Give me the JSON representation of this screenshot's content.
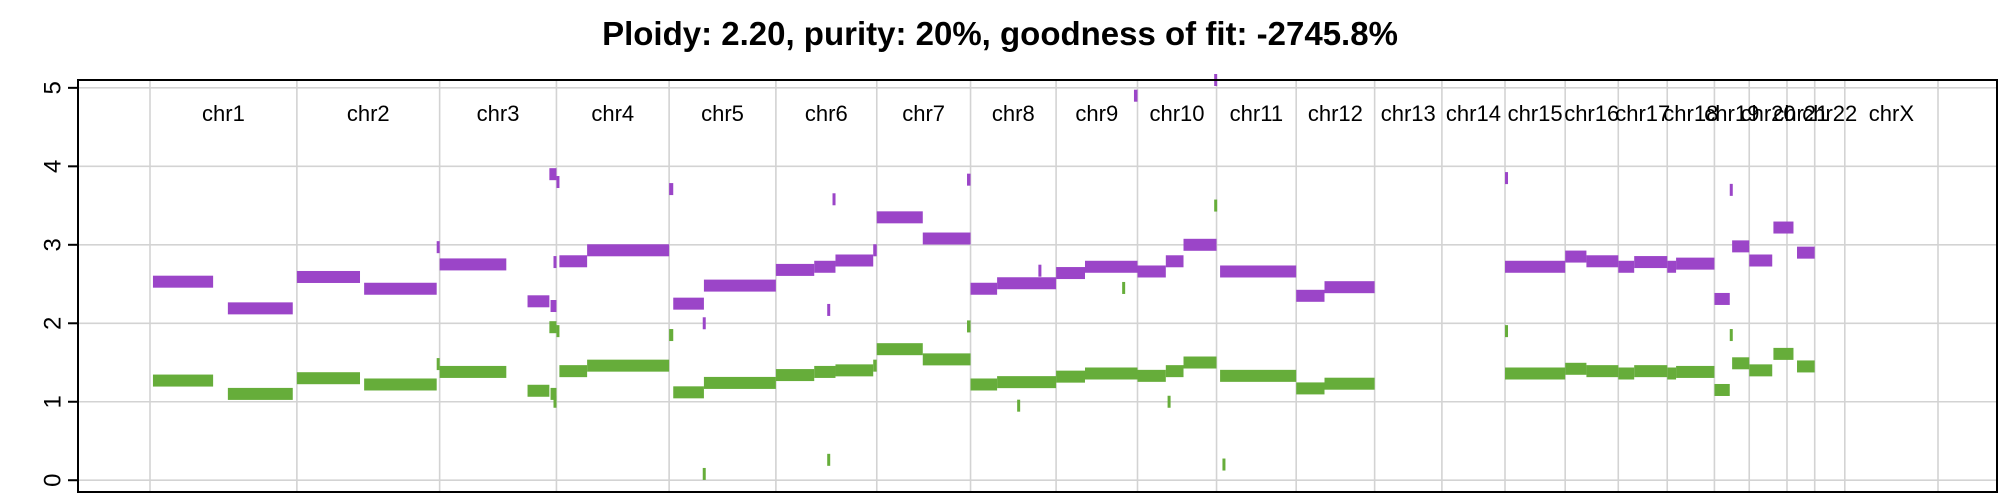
{
  "chart_data": {
    "type": "segment",
    "title": "Ploidy: 2.20, purity: 20%, goodness of fit: -2745.8%",
    "xlabel": "",
    "ylabel": "",
    "ylim": [
      -0.15,
      5.1
    ],
    "yticks": [
      "0",
      "1",
      "2",
      "3",
      "4",
      "5"
    ],
    "grid": true,
    "colors": {
      "major": "#9b45c8",
      "minor": "#66ad3a",
      "grid": "#d3d3d3"
    },
    "genome_length": 3031,
    "chromosomes": [
      {
        "name": "chr1",
        "start": 0,
        "end": 249
      },
      {
        "name": "chr2",
        "start": 249,
        "end": 491
      },
      {
        "name": "chr3",
        "start": 491,
        "end": 689
      },
      {
        "name": "chr4",
        "start": 689,
        "end": 880
      },
      {
        "name": "chr5",
        "start": 880,
        "end": 1061
      },
      {
        "name": "chr6",
        "start": 1061,
        "end": 1232
      },
      {
        "name": "chr7",
        "start": 1232,
        "end": 1391
      },
      {
        "name": "chr8",
        "start": 1391,
        "end": 1536
      },
      {
        "name": "chr9",
        "start": 1536,
        "end": 1674
      },
      {
        "name": "chr10",
        "start": 1674,
        "end": 1808
      },
      {
        "name": "chr11",
        "start": 1808,
        "end": 1943
      },
      {
        "name": "chr12",
        "start": 1943,
        "end": 2076
      },
      {
        "name": "chr13",
        "start": 2076,
        "end": 2190
      },
      {
        "name": "chr14",
        "start": 2190,
        "end": 2297
      },
      {
        "name": "chr15",
        "start": 2297,
        "end": 2399
      },
      {
        "name": "chr16",
        "start": 2399,
        "end": 2489
      },
      {
        "name": "chr17",
        "start": 2489,
        "end": 2572
      },
      {
        "name": "chr18",
        "start": 2572,
        "end": 2652
      },
      {
        "name": "chr19",
        "start": 2652,
        "end": 2711
      },
      {
        "name": "chr20",
        "start": 2711,
        "end": 2775
      },
      {
        "name": "chr21",
        "start": 2775,
        "end": 2822
      },
      {
        "name": "chr22",
        "start": 2822,
        "end": 2873
      },
      {
        "name": "chrX",
        "start": 2873,
        "end": 3031
      }
    ],
    "series": [
      {
        "name": "major",
        "segments": [
          [
            5,
            107,
            2.53
          ],
          [
            132,
            242,
            2.19
          ],
          [
            249,
            356,
            2.59
          ],
          [
            363,
            486,
            2.44
          ],
          [
            486,
            491,
            2.97
          ],
          [
            491,
            604,
            2.75
          ],
          [
            640,
            677,
            2.28
          ],
          [
            677,
            689,
            3.9
          ],
          [
            679,
            689,
            2.22
          ],
          [
            684,
            689,
            2.78
          ],
          [
            689,
            694,
            3.8
          ],
          [
            694,
            741,
            2.79
          ],
          [
            741,
            880,
            2.93
          ],
          [
            880,
            887,
            3.71
          ],
          [
            887,
            939,
            2.25
          ],
          [
            939,
            1061,
            2.48
          ],
          [
            937,
            942,
            2.0
          ],
          [
            1061,
            1126,
            2.68
          ],
          [
            1126,
            1162,
            2.72
          ],
          [
            1162,
            1226,
            2.8
          ],
          [
            1226,
            1232,
            2.93
          ],
          [
            1157,
            1162,
            3.58
          ],
          [
            1148,
            1152,
            2.17
          ],
          [
            1232,
            1310,
            3.35
          ],
          [
            1310,
            1391,
            3.08
          ],
          [
            1385,
            1391,
            3.83
          ],
          [
            1391,
            1436,
            2.44
          ],
          [
            1436,
            1536,
            2.51
          ],
          [
            1506,
            1511,
            2.67
          ],
          [
            1536,
            1585,
            2.64
          ],
          [
            1585,
            1674,
            2.72
          ],
          [
            1668,
            1674,
            4.9
          ],
          [
            1674,
            1722,
            2.66
          ],
          [
            1722,
            1752,
            2.79
          ],
          [
            1752,
            1808,
            3.0
          ],
          [
            1804,
            1808,
            5.1
          ],
          [
            1814,
            1943,
            2.66
          ],
          [
            1943,
            1991,
            2.35
          ],
          [
            1991,
            2076,
            2.46
          ],
          [
            2297,
            2301,
            3.85
          ],
          [
            2297,
            2399,
            2.72
          ],
          [
            2399,
            2435,
            2.85
          ],
          [
            2435,
            2489,
            2.79
          ],
          [
            2489,
            2516,
            2.72
          ],
          [
            2516,
            2572,
            2.78
          ],
          [
            2572,
            2587,
            2.72
          ],
          [
            2587,
            2652,
            2.76
          ],
          [
            2652,
            2678,
            2.31
          ],
          [
            2678,
            2682,
            3.7
          ],
          [
            2682,
            2711,
            2.98
          ],
          [
            2711,
            2750,
            2.8
          ],
          [
            2752,
            2786,
            3.22
          ],
          [
            2792,
            2822,
            2.9
          ]
        ]
      },
      {
        "name": "minor",
        "segments": [
          [
            5,
            107,
            1.27
          ],
          [
            132,
            242,
            1.1
          ],
          [
            249,
            356,
            1.3
          ],
          [
            363,
            486,
            1.22
          ],
          [
            486,
            491,
            1.48
          ],
          [
            491,
            604,
            1.38
          ],
          [
            640,
            677,
            1.14
          ],
          [
            677,
            689,
            1.95
          ],
          [
            679,
            689,
            1.1
          ],
          [
            684,
            689,
            1.0
          ],
          [
            689,
            694,
            1.9
          ],
          [
            694,
            741,
            1.39
          ],
          [
            741,
            880,
            1.46
          ],
          [
            880,
            887,
            1.85
          ],
          [
            887,
            939,
            1.12
          ],
          [
            939,
            1061,
            1.24
          ],
          [
            937,
            942,
            0.08
          ],
          [
            1061,
            1126,
            1.34
          ],
          [
            1126,
            1162,
            1.38
          ],
          [
            1162,
            1226,
            1.4
          ],
          [
            1226,
            1232,
            1.46
          ],
          [
            1148,
            1152,
            0.26
          ],
          [
            1232,
            1310,
            1.67
          ],
          [
            1310,
            1391,
            1.54
          ],
          [
            1385,
            1391,
            1.96
          ],
          [
            1391,
            1436,
            1.22
          ],
          [
            1436,
            1536,
            1.25
          ],
          [
            1470,
            1475,
            0.95
          ],
          [
            1536,
            1585,
            1.32
          ],
          [
            1585,
            1674,
            1.36
          ],
          [
            1648,
            1652,
            2.45
          ],
          [
            1674,
            1722,
            1.33
          ],
          [
            1722,
            1752,
            1.39
          ],
          [
            1752,
            1808,
            1.5
          ],
          [
            1804,
            1808,
            3.5
          ],
          [
            1725,
            1729,
            1.0
          ],
          [
            1818,
            1822,
            0.2
          ],
          [
            1814,
            1943,
            1.33
          ],
          [
            1943,
            1991,
            1.17
          ],
          [
            1991,
            2076,
            1.23
          ],
          [
            2297,
            2301,
            1.9
          ],
          [
            2297,
            2399,
            1.36
          ],
          [
            2399,
            2435,
            1.42
          ],
          [
            2435,
            2489,
            1.39
          ],
          [
            2489,
            2516,
            1.36
          ],
          [
            2516,
            2572,
            1.39
          ],
          [
            2572,
            2587,
            1.36
          ],
          [
            2587,
            2652,
            1.38
          ],
          [
            2652,
            2678,
            1.15
          ],
          [
            2678,
            2682,
            1.85
          ],
          [
            2682,
            2711,
            1.49
          ],
          [
            2711,
            2750,
            1.4
          ],
          [
            2752,
            2786,
            1.61
          ],
          [
            2792,
            2822,
            1.45
          ]
        ]
      }
    ]
  }
}
